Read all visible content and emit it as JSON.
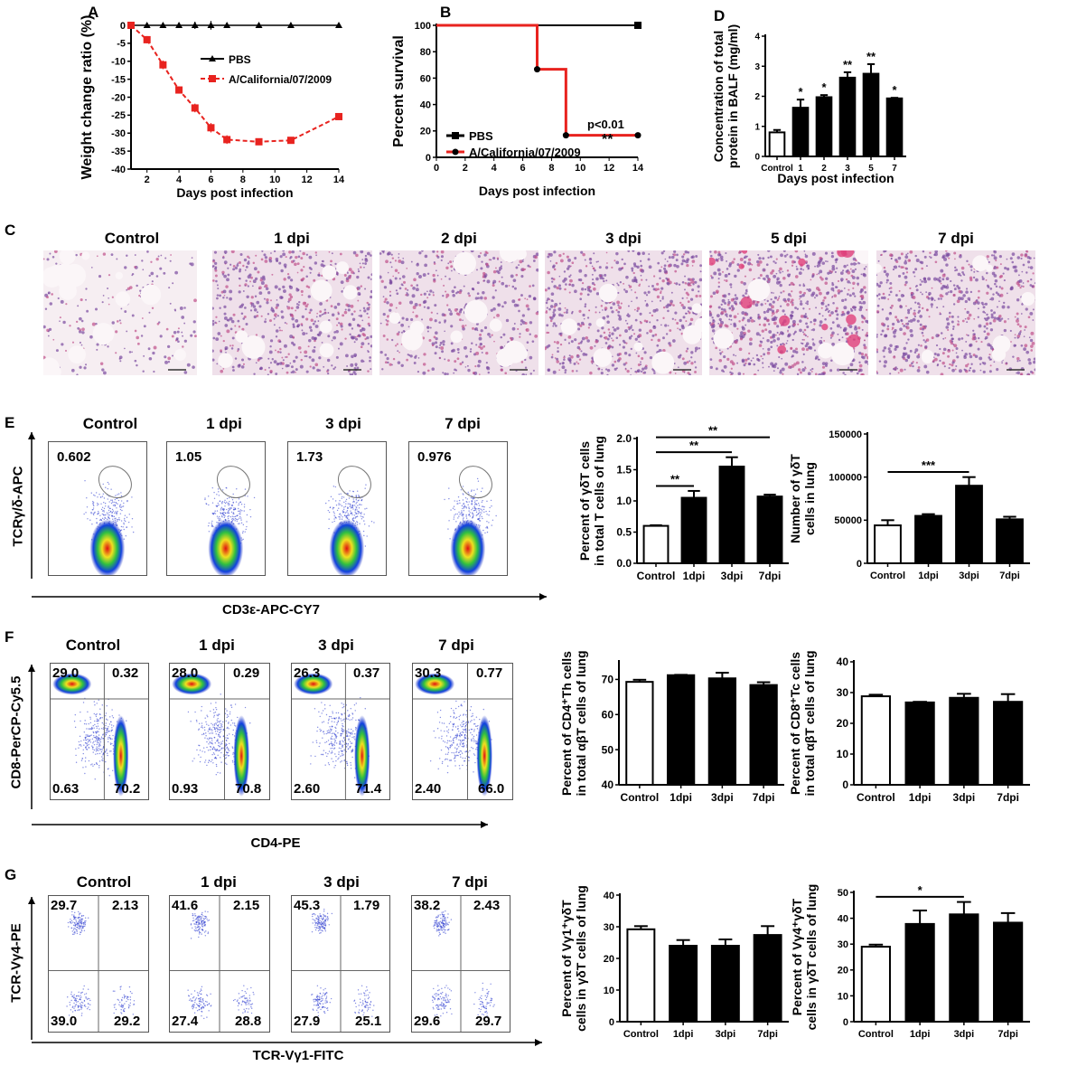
{
  "panels": {
    "A": {
      "label": "A"
    },
    "B": {
      "label": "B"
    },
    "C": {
      "label": "C",
      "titles": [
        "Control",
        "1 dpi",
        "2 dpi",
        "3 dpi",
        "5 dpi",
        "7 dpi"
      ]
    },
    "D": {
      "label": "D"
    },
    "E": {
      "label": "E",
      "titles": [
        "Control",
        "1 dpi",
        "3 dpi",
        "7 dpi"
      ],
      "gate_values": [
        "0.602",
        "1.05",
        "1.73",
        "0.976"
      ],
      "y_axis": "TCRγ/δ-APC",
      "x_axis": "CD3ε-APC-CY7"
    },
    "F": {
      "label": "F",
      "titles": [
        "Control",
        "1 dpi",
        "3 dpi",
        "7 dpi"
      ],
      "quadrants": [
        [
          "29.0",
          "0.32",
          "0.63",
          "70.2"
        ],
        [
          "28.0",
          "0.29",
          "0.93",
          "70.8"
        ],
        [
          "26.3",
          "0.37",
          "2.60",
          "71.4"
        ],
        [
          "30.3",
          "0.77",
          "2.40",
          "66.0"
        ]
      ],
      "y_axis": "CD8-PerCP-Cy5.5",
      "x_axis": "CD4-PE"
    },
    "G": {
      "label": "G",
      "titles": [
        "Control",
        "1 dpi",
        "3 dpi",
        "7 dpi"
      ],
      "quadrants": [
        [
          "29.7",
          "2.13",
          "39.0",
          "29.2"
        ],
        [
          "41.6",
          "2.15",
          "27.4",
          "28.8"
        ],
        [
          "45.3",
          "1.79",
          "27.9",
          "25.1"
        ],
        [
          "38.2",
          "2.43",
          "29.6",
          "29.7"
        ]
      ],
      "y_axis": "TCR-Vγ4-PE",
      "x_axis": "TCR-Vγ1-FITC"
    }
  },
  "colors": {
    "infected": "#e8231f",
    "control_bar": "#ffffff",
    "treated_bar": "#000000"
  },
  "chart_data": [
    {
      "id": "A",
      "type": "line",
      "xlabel": "Days post infection",
      "ylabel": "Weight change ratio (%)",
      "xlim": [
        1,
        14
      ],
      "ylim": [
        -40,
        0
      ],
      "xticks": [
        2,
        4,
        6,
        8,
        10,
        12,
        14
      ],
      "yticks": [
        0,
        -5,
        -10,
        -15,
        -20,
        -25,
        -30,
        -35,
        -40
      ],
      "x": [
        1,
        2,
        3,
        4,
        5,
        6,
        7,
        9,
        11,
        14
      ],
      "legend": "in-plot right",
      "series": [
        {
          "name": "PBS",
          "values": [
            0,
            0,
            0,
            0,
            0,
            0,
            0,
            0,
            0,
            0
          ],
          "errors": [
            0,
            0,
            0,
            0,
            1,
            1.2,
            0,
            0,
            0,
            0
          ],
          "marker": "triangle",
          "color": "#000000"
        },
        {
          "name": "A/California/07/2009",
          "values": [
            0,
            -4,
            -11,
            -18,
            -23,
            -28.5,
            -31.8,
            -32.4,
            -32,
            -25.4
          ],
          "errors": [
            0,
            1,
            1.2,
            1,
            1.2,
            1.3,
            1.2,
            0.5,
            0.5,
            0.4
          ],
          "marker": "square",
          "color": "#e8231f",
          "dashed": true
        }
      ]
    },
    {
      "id": "B",
      "type": "line",
      "xlabel": "Days post infection",
      "ylabel": "Percent survival",
      "xlim": [
        0,
        14
      ],
      "ylim": [
        0,
        100
      ],
      "xticks": [
        0,
        2,
        4,
        6,
        8,
        10,
        12,
        14
      ],
      "yticks": [
        0,
        20,
        40,
        60,
        80,
        100
      ],
      "legend": "bottom-left",
      "annotation": "p<0.01",
      "significance": "**",
      "series": [
        {
          "name": "PBS",
          "x": [
            0,
            14
          ],
          "values": [
            100,
            100
          ],
          "step": true,
          "color": "#000000",
          "marker": "square"
        },
        {
          "name": "A/California/07/2009",
          "x": [
            0,
            7,
            9,
            14
          ],
          "values": [
            100,
            66.7,
            16.7,
            16.7
          ],
          "step": true,
          "color": "#e8231f",
          "marker": "circle"
        }
      ]
    },
    {
      "id": "D",
      "type": "bar",
      "xlabel": "Days post infection",
      "ylabel": [
        "Concentration of total",
        "protein in BALF (mg/ml)"
      ],
      "ylim": [
        0,
        4
      ],
      "yticks": [
        0,
        1,
        2,
        3,
        4
      ],
      "categories": [
        "Control",
        "1",
        "2",
        "3",
        "5",
        "7"
      ],
      "values": [
        0.8,
        1.62,
        1.97,
        2.62,
        2.75,
        1.93
      ],
      "errors": [
        0.08,
        0.27,
        0.07,
        0.18,
        0.32,
        0.02
      ],
      "significance": [
        "",
        "*",
        "*",
        "**",
        "**",
        "*"
      ]
    },
    {
      "id": "E1",
      "type": "bar",
      "ylabel": [
        "Percent of γδT cells",
        "in total T cells of lung"
      ],
      "ylim": [
        0,
        2
      ],
      "yticks": [
        0.0,
        0.5,
        1.0,
        1.5,
        2.0
      ],
      "ytick_labels": [
        "0.0",
        "0.5",
        "1.0",
        "1.5",
        "2.0"
      ],
      "categories": [
        "Control",
        "1dpi",
        "3dpi",
        "7dpi"
      ],
      "values": [
        0.6,
        1.05,
        1.55,
        1.07
      ],
      "errors": [
        0.01,
        0.11,
        0.15,
        0.03
      ],
      "brackets": [
        {
          "from": "Control",
          "to": "1dpi",
          "label": "**"
        },
        {
          "from": "Control",
          "to": "3dpi",
          "label": "**"
        },
        {
          "from": "Control",
          "to": "7dpi",
          "label": "**"
        }
      ]
    },
    {
      "id": "E2",
      "type": "bar",
      "ylabel": [
        "Number of γδT",
        "cells in lung"
      ],
      "ylim": [
        0,
        150000
      ],
      "yticks": [
        0,
        50000,
        100000,
        150000
      ],
      "categories": [
        "Control",
        "1dpi",
        "3dpi",
        "7dpi"
      ],
      "values": [
        44000,
        55000,
        90000,
        51000
      ],
      "errors": [
        6000,
        2000,
        10000,
        3000
      ],
      "brackets": [
        {
          "from": "Control",
          "to": "3dpi",
          "label": "***"
        }
      ]
    },
    {
      "id": "F1",
      "type": "bar",
      "ylabel": [
        "Percent of CD4⁺Th cells",
        "in total αβT cells of lung"
      ],
      "ylim": [
        40,
        75
      ],
      "yticks": [
        40,
        50,
        60,
        70
      ],
      "categories": [
        "Control",
        "1dpi",
        "3dpi",
        "7dpi"
      ],
      "values": [
        69.3,
        71.2,
        70.3,
        68.4
      ],
      "errors": [
        0.6,
        0.1,
        1.6,
        0.8
      ]
    },
    {
      "id": "F2",
      "type": "bar",
      "ylabel": [
        "Percent of CD8⁺Tc cells",
        "in total αβT cells of lung"
      ],
      "ylim": [
        0,
        40
      ],
      "yticks": [
        0,
        10,
        20,
        30,
        40
      ],
      "categories": [
        "Control",
        "1dpi",
        "3dpi",
        "7dpi"
      ],
      "values": [
        28.8,
        26.8,
        28.3,
        27.0
      ],
      "errors": [
        0.5,
        0.2,
        1.3,
        2.5
      ]
    },
    {
      "id": "G1",
      "type": "bar",
      "ylabel": [
        "Percent of Vγ1⁺γδT",
        "cells in γδT cells of lung"
      ],
      "ylim": [
        0,
        40
      ],
      "yticks": [
        0,
        10,
        20,
        30,
        40
      ],
      "categories": [
        "Control",
        "1dpi",
        "3dpi",
        "7dpi"
      ],
      "values": [
        29.2,
        24.0,
        24.0,
        27.4
      ],
      "errors": [
        1.0,
        1.8,
        2.0,
        2.8
      ]
    },
    {
      "id": "G2",
      "type": "bar",
      "ylabel": [
        "Percent of Vγ4⁺γδT",
        "cells in γδT cells of lung"
      ],
      "ylim": [
        0,
        50
      ],
      "yticks": [
        0,
        10,
        20,
        30,
        40,
        50
      ],
      "categories": [
        "Control",
        "1dpi",
        "3dpi",
        "7dpi"
      ],
      "values": [
        29.0,
        37.8,
        41.5,
        38.3
      ],
      "errors": [
        0.8,
        5.2,
        4.8,
        3.7
      ],
      "brackets": [
        {
          "from": "Control",
          "to": "3dpi",
          "label": "*"
        }
      ]
    }
  ]
}
